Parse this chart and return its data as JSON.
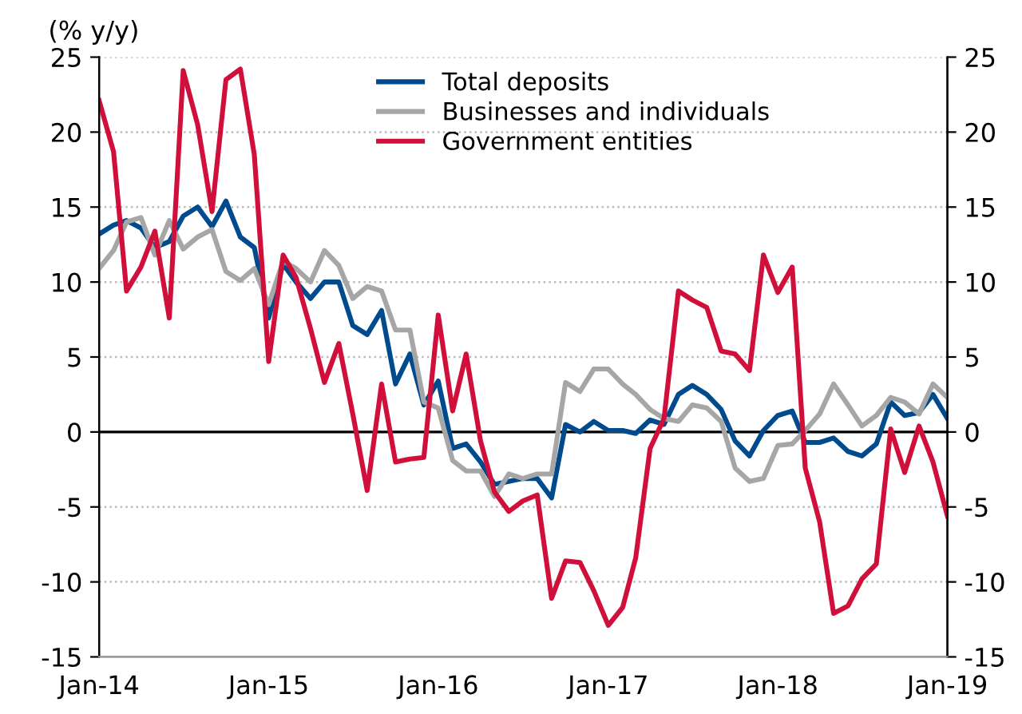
{
  "chart_data": {
    "type": "line",
    "ylabel": "(% y/y)",
    "x": [
      "2014-01",
      "2014-02",
      "2014-03",
      "2014-04",
      "2014-05",
      "2014-06",
      "2014-07",
      "2014-08",
      "2014-09",
      "2014-10",
      "2014-11",
      "2014-12",
      "2015-01",
      "2015-02",
      "2015-03",
      "2015-04",
      "2015-05",
      "2015-06",
      "2015-07",
      "2015-08",
      "2015-09",
      "2015-10",
      "2015-11",
      "2015-12",
      "2016-01",
      "2016-02",
      "2016-03",
      "2016-04",
      "2016-05",
      "2016-06",
      "2016-07",
      "2016-08",
      "2016-09",
      "2016-10",
      "2016-11",
      "2016-12",
      "2017-01",
      "2017-02",
      "2017-03",
      "2017-04",
      "2017-05",
      "2017-06",
      "2017-07",
      "2017-08",
      "2017-09",
      "2017-10",
      "2017-11",
      "2017-12",
      "2018-01",
      "2018-02",
      "2018-03",
      "2018-04",
      "2018-05",
      "2018-06",
      "2018-07",
      "2018-08",
      "2018-09",
      "2018-10",
      "2018-11",
      "2018-12",
      "2019-01"
    ],
    "series": [
      {
        "name": "Total deposits",
        "color": "#004b8d",
        "values": [
          13.2,
          13.8,
          14.1,
          13.6,
          12.3,
          12.7,
          14.4,
          15.0,
          13.7,
          15.4,
          13.0,
          12.3,
          7.6,
          11.2,
          10.0,
          8.9,
          10.0,
          10.0,
          7.1,
          6.5,
          8.1,
          3.2,
          5.2,
          1.8,
          3.4,
          -1.1,
          -0.8,
          -2.0,
          -3.5,
          -3.3,
          -3.1,
          -3.1,
          -4.4,
          0.5,
          0.0,
          0.7,
          0.1,
          0.1,
          -0.1,
          0.8,
          0.5,
          2.5,
          3.1,
          2.5,
          1.5,
          -0.6,
          -1.6,
          0.1,
          1.1,
          1.4,
          -0.7,
          -0.7,
          -0.4,
          -1.3,
          -1.6,
          -0.8,
          2.0,
          1.1,
          1.3,
          2.5,
          0.9
        ]
      },
      {
        "name": "Businesses and individuals",
        "color": "#a6a6a6",
        "values": [
          10.9,
          12.1,
          14.0,
          14.3,
          11.8,
          14.1,
          12.2,
          13.0,
          13.5,
          10.7,
          10.1,
          10.9,
          8.5,
          11.4,
          10.9,
          10.0,
          12.1,
          11.1,
          8.9,
          9.7,
          9.4,
          6.8,
          6.8,
          2.0,
          1.6,
          -1.9,
          -2.6,
          -2.6,
          -4.3,
          -2.8,
          -3.1,
          -2.8,
          -2.8,
          3.3,
          2.7,
          4.2,
          4.2,
          3.2,
          2.5,
          1.5,
          0.9,
          0.7,
          1.8,
          1.6,
          0.7,
          -2.4,
          -3.3,
          -3.1,
          -0.9,
          -0.8,
          0.1,
          1.2,
          3.2,
          1.8,
          0.4,
          1.1,
          2.3,
          2.0,
          1.2,
          3.2,
          2.3
        ]
      },
      {
        "name": "Government entities",
        "color": "#d0103a",
        "values": [
          22.1,
          18.7,
          9.4,
          11.0,
          13.4,
          7.6,
          24.1,
          20.5,
          14.7,
          23.5,
          24.2,
          18.5,
          4.7,
          11.8,
          10.3,
          6.9,
          3.3,
          5.9,
          1.2,
          -3.9,
          3.2,
          -2.0,
          -1.8,
          -1.7,
          7.8,
          1.4,
          5.2,
          -0.6,
          -4.0,
          -5.3,
          -4.6,
          -4.2,
          -11.1,
          -8.6,
          -8.7,
          -10.6,
          -12.9,
          -11.7,
          -8.4,
          -1.1,
          0.9,
          9.4,
          8.8,
          8.3,
          5.4,
          5.2,
          4.1,
          11.8,
          9.3,
          11.0,
          -2.4,
          -6.0,
          -12.1,
          -11.6,
          -9.8,
          -8.8,
          0.2,
          -2.7,
          0.4,
          -2.0,
          -5.6
        ]
      }
    ],
    "xlim": [
      "2014-01",
      "2019-01"
    ],
    "xticks": [
      {
        "value": "2014-01",
        "label": "Jan-14"
      },
      {
        "value": "2015-01",
        "label": "Jan-15"
      },
      {
        "value": "2016-01",
        "label": "Jan-16"
      },
      {
        "value": "2017-01",
        "label": "Jan-17"
      },
      {
        "value": "2018-01",
        "label": "Jan-18"
      },
      {
        "value": "2019-01",
        "label": "Jan-19"
      }
    ],
    "ylim": [
      -15,
      25
    ],
    "yticks": [
      -15,
      -10,
      -5,
      0,
      5,
      10,
      15,
      20,
      25
    ],
    "y2lim": [
      -15,
      25
    ],
    "y2ticks": [
      -15,
      -10,
      -5,
      0,
      5,
      10,
      15,
      20,
      25
    ],
    "ref_lines": [
      {
        "axis": "y",
        "value": 0,
        "color": "#000000",
        "line_style": "solid"
      }
    ],
    "grid": "y",
    "legend": "top",
    "marker": "none",
    "line_style": "solid"
  }
}
